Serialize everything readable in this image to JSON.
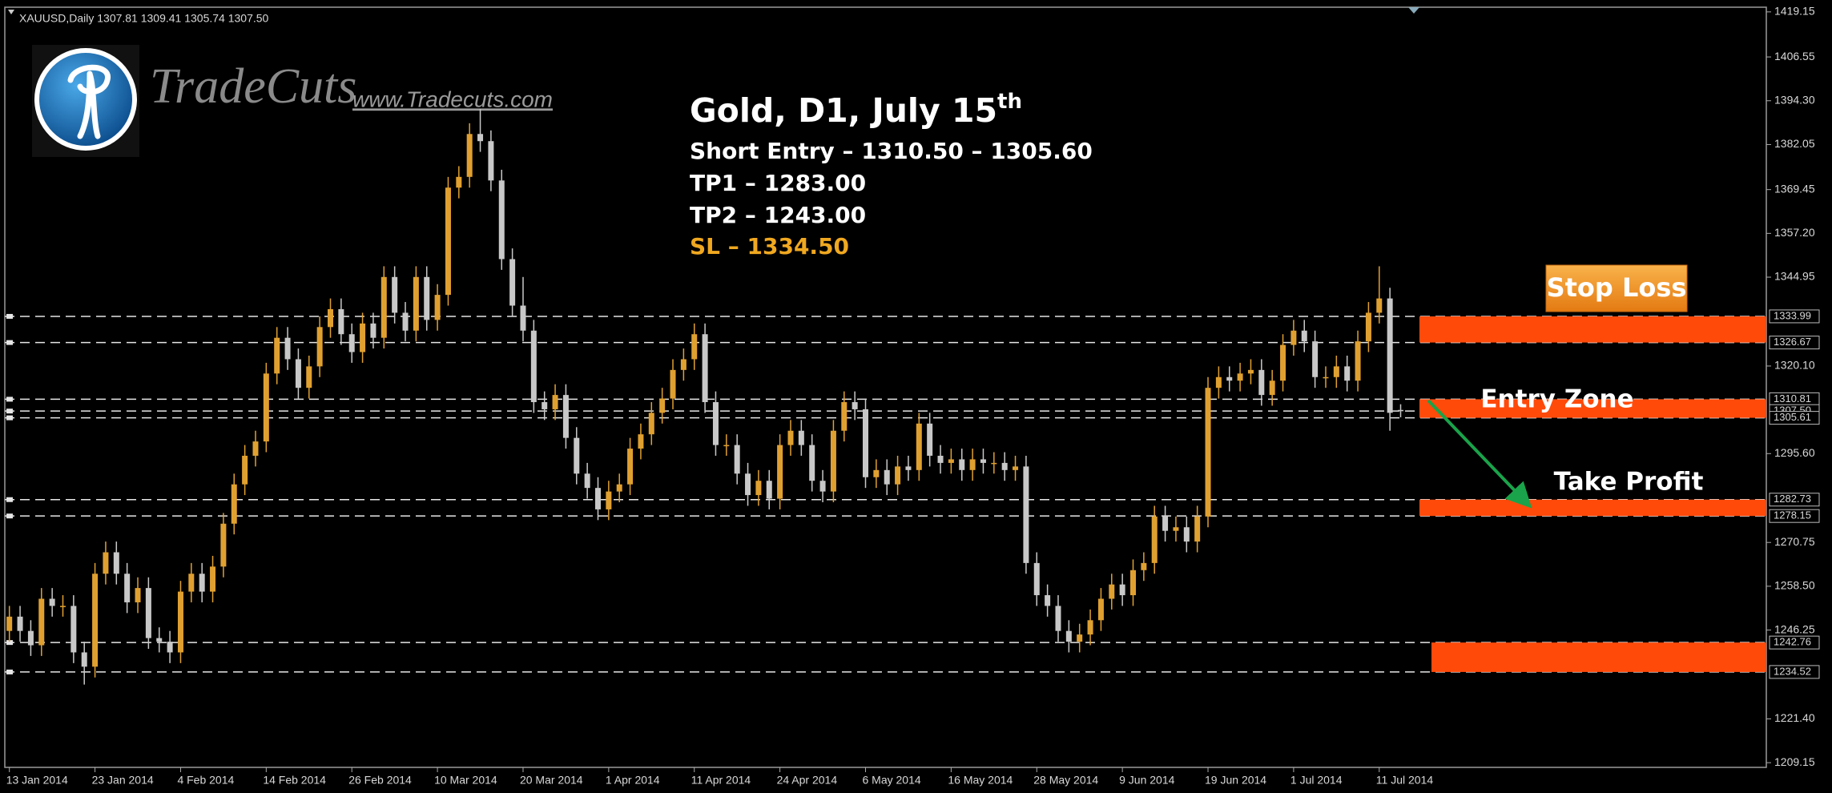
{
  "chart_data": {
    "type": "candlestick",
    "header": "XAUUSD,Daily  1307.81 1309.41 1305.74 1307.50",
    "title": "Gold, D1, July 15",
    "title_suffix": "th",
    "annotations": [
      "Short Entry –  1310.50 – 1305.60",
      "TP1 – 1283.00",
      "TP2 – 1243.00",
      "SL –  1334.50"
    ],
    "logo": {
      "name": "TradeCuts",
      "url": "www.Tradecuts.com"
    },
    "zone_labels": [
      "Stop Loss",
      "Entry Zone",
      "Take Profit"
    ],
    "zone_color": "#ff4a0a",
    "up_color": "#e0a030",
    "down_color": "#c8c8c8",
    "level_color": "#e6e6e6",
    "ylim": [
      1207.84,
      1420.46
    ],
    "yticks": [
      1419.15,
      1406.55,
      {
        "value": 1394.3,
        "label": "1394.30"
      },
      1382.05,
      1369.45,
      {
        "value": 1357.2,
        "label": "1357.20"
      },
      1344.95,
      {
        "value": 1320.1,
        "label": "1320.10"
      },
      {
        "value": 1295.6,
        "label": "1295.60"
      },
      1270.75,
      {
        "value": 1258.5,
        "label": "1258.50"
      },
      1246.25,
      {
        "value": 1221.4,
        "label": "1221.40"
      },
      1209.15
    ],
    "levels": [
      1333.99,
      1326.67,
      1310.81,
      {
        "value": 1307.5,
        "label": "1307.50"
      },
      1305.61,
      1282.73,
      1278.15,
      1242.76,
      1234.52
    ],
    "categories": [
      "13 Jan 2014",
      null,
      null,
      null,
      null,
      null,
      null,
      null,
      "23 Jan 2014",
      null,
      null,
      null,
      null,
      null,
      null,
      null,
      "4 Feb 2014",
      null,
      null,
      null,
      null,
      null,
      null,
      null,
      "14 Feb 2014",
      null,
      null,
      null,
      null,
      null,
      null,
      null,
      "26 Feb 2014",
      null,
      null,
      null,
      null,
      null,
      null,
      null,
      "10 Mar 2014",
      null,
      null,
      null,
      null,
      null,
      null,
      null,
      "20 Mar 2014",
      null,
      null,
      null,
      null,
      null,
      null,
      null,
      "1 Apr 2014",
      null,
      null,
      null,
      null,
      null,
      null,
      null,
      "11 Apr 2014",
      null,
      null,
      null,
      null,
      null,
      null,
      null,
      "24 Apr 2014",
      null,
      null,
      null,
      null,
      null,
      null,
      null,
      "6 May 2014",
      null,
      null,
      null,
      null,
      null,
      null,
      null,
      "16 May 2014",
      null,
      null,
      null,
      null,
      null,
      null,
      null,
      "28 May 2014",
      null,
      null,
      null,
      null,
      null,
      null,
      null,
      "9 Jun 2014",
      null,
      null,
      null,
      null,
      null,
      null,
      null,
      "19 Jun 2014",
      null,
      null,
      null,
      null,
      null,
      null,
      null,
      "1 Jul 2014",
      null,
      null,
      null,
      null,
      null,
      null,
      null,
      "11 Jul 2014",
      null,
      null
    ],
    "open": [
      1246,
      1250,
      1246,
      1242,
      1255,
      1253,
      1253,
      1240,
      1236,
      1262,
      1268,
      1262,
      1254,
      1258,
      1244,
      1243,
      1240,
      1257,
      1262,
      1257,
      1264,
      1276,
      1287,
      1295,
      1299,
      1318,
      1328,
      1322,
      1314,
      1320,
      1331,
      1336,
      1329,
      1324,
      1332,
      1328,
      1345,
      1335,
      1330,
      1345,
      1333,
      1340,
      1370,
      1373,
      1385,
      1383,
      1372,
      1350,
      1337,
      1330,
      1310,
      1308,
      1312,
      1300,
      1290,
      1286,
      1280,
      1285,
      1287,
      1297,
      1301,
      1307,
      1311,
      1319,
      1322,
      1329,
      1310,
      1298,
      1298,
      1290,
      1284,
      1288,
      1283,
      1298,
      1302,
      1298,
      1288,
      1285,
      1302,
      1310,
      1308,
      1289,
      1291,
      1287,
      1292,
      1291,
      1304,
      1295,
      1293,
      1294,
      1291,
      1294,
      1293,
      1293,
      1291,
      1292,
      1265,
      1256,
      1253,
      1246,
      1243,
      1245,
      1249,
      1255,
      1259,
      1256,
      1263,
      1265,
      1278,
      1274,
      1275,
      1271,
      1278,
      1314,
      1317,
      1316,
      1318,
      1319,
      1312,
      1316,
      1326,
      1330,
      1327,
      1317,
      1317,
      1320,
      1316,
      1327,
      1335,
      1339,
      1307.81
    ],
    "high": [
      1253,
      1253,
      1249,
      1258,
      1258,
      1256,
      1256,
      1243,
      1265,
      1271,
      1271,
      1265,
      1261,
      1261,
      1247,
      1246,
      1260,
      1265,
      1265,
      1267,
      1279,
      1290,
      1298,
      1302,
      1321,
      1331,
      1331,
      1325,
      1323,
      1334,
      1339,
      1339,
      1332,
      1335,
      1335,
      1348,
      1348,
      1338,
      1348,
      1348,
      1343,
      1373,
      1376,
      1388,
      1392,
      1386,
      1375,
      1353,
      1345,
      1333,
      1313,
      1315,
      1315,
      1303,
      1293,
      1289,
      1288,
      1290,
      1300,
      1304,
      1310,
      1314,
      1322,
      1325,
      1332,
      1332,
      1313,
      1301,
      1301,
      1293,
      1291,
      1291,
      1301,
      1305,
      1305,
      1301,
      1291,
      1305,
      1313,
      1313,
      1311,
      1294,
      1294,
      1295,
      1295,
      1307,
      1307,
      1298,
      1297,
      1297,
      1297,
      1297,
      1296,
      1296,
      1295,
      1295,
      1268,
      1259,
      1256,
      1249,
      1248,
      1252,
      1258,
      1262,
      1262,
      1266,
      1268,
      1281,
      1281,
      1278,
      1278,
      1281,
      1317,
      1320,
      1320,
      1321,
      1322,
      1322,
      1319,
      1329,
      1333,
      1333,
      1330,
      1320,
      1323,
      1323,
      1330,
      1338,
      1348,
      1342,
      1309.41
    ],
    "low": [
      1243,
      1243,
      1239,
      1239,
      1250,
      1250,
      1237,
      1231,
      1233,
      1259,
      1259,
      1251,
      1251,
      1241,
      1240,
      1237,
      1237,
      1254,
      1254,
      1254,
      1261,
      1273,
      1284,
      1292,
      1296,
      1315,
      1319,
      1311,
      1311,
      1317,
      1328,
      1326,
      1321,
      1321,
      1325,
      1325,
      1332,
      1327,
      1327,
      1330,
      1330,
      1337,
      1367,
      1370,
      1380,
      1369,
      1347,
      1334,
      1327,
      1307,
      1305,
      1305,
      1297,
      1287,
      1283,
      1277,
      1277,
      1282,
      1284,
      1294,
      1298,
      1304,
      1308,
      1316,
      1319,
      1307,
      1295,
      1295,
      1287,
      1281,
      1281,
      1280,
      1280,
      1295,
      1295,
      1285,
      1282,
      1282,
      1299,
      1305,
      1286,
      1286,
      1284,
      1284,
      1288,
      1288,
      1292,
      1290,
      1290,
      1288,
      1288,
      1290,
      1290,
      1288,
      1288,
      1262,
      1253,
      1250,
      1243,
      1240,
      1240,
      1242,
      1246,
      1252,
      1253,
      1253,
      1260,
      1262,
      1271,
      1271,
      1268,
      1268,
      1275,
      1311,
      1313,
      1313,
      1315,
      1309,
      1309,
      1313,
      1323,
      1324,
      1314,
      1314,
      1314,
      1313,
      1313,
      1324,
      1332,
      1302,
      1305.74
    ],
    "close": [
      1250,
      1246,
      1242,
      1255,
      1253,
      1253,
      1240,
      1236,
      1262,
      1268,
      1262,
      1254,
      1258,
      1244,
      1243,
      1240,
      1257,
      1262,
      1257,
      1264,
      1276,
      1287,
      1295,
      1299,
      1318,
      1328,
      1322,
      1314,
      1320,
      1331,
      1336,
      1329,
      1324,
      1332,
      1328,
      1345,
      1335,
      1330,
      1345,
      1333,
      1340,
      1370,
      1373,
      1385,
      1383,
      1372,
      1350,
      1337,
      1330,
      1310,
      1308,
      1312,
      1300,
      1290,
      1286,
      1280,
      1285,
      1287,
      1297,
      1301,
      1307,
      1311,
      1319,
      1322,
      1329,
      1310,
      1298,
      1298,
      1290,
      1284,
      1288,
      1283,
      1298,
      1302,
      1298,
      1288,
      1285,
      1302,
      1310,
      1308,
      1289,
      1291,
      1287,
      1292,
      1291,
      1304,
      1295,
      1293,
      1294,
      1291,
      1294,
      1293,
      1293,
      1291,
      1292,
      1265,
      1256,
      1253,
      1246,
      1243,
      1245,
      1249,
      1255,
      1259,
      1256,
      1263,
      1265,
      1278,
      1274,
      1275,
      1271,
      1278,
      1314,
      1317,
      1316,
      1318,
      1319,
      1312,
      1316,
      1326,
      1330,
      1327,
      1317,
      1317,
      1320,
      1316,
      1327,
      1335,
      1339,
      1307,
      1307.5
    ]
  }
}
